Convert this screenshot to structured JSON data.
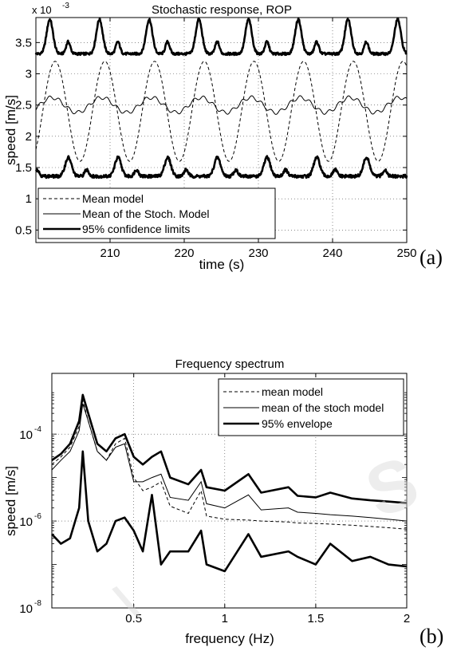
{
  "chart_data": [
    {
      "type": "line",
      "panel_label": "(a)",
      "title": "Stochastic response, ROP",
      "xlabel": "time (s)",
      "ylabel": "speed [m/s]",
      "y_exponent_label": "x 10",
      "y_exponent": "-3",
      "xlim": [
        200,
        250
      ],
      "ylim": [
        0.0003,
        0.0039
      ],
      "xticks": [
        210,
        220,
        230,
        240,
        250
      ],
      "yticks": [
        0.5,
        1,
        1.5,
        2,
        2.5,
        3,
        3.5
      ],
      "ytick_labels": [
        "0.5",
        "1",
        "1.5",
        "2",
        "2.5",
        "3",
        "3.5"
      ],
      "grid": true,
      "legend_position": "bottom-left",
      "sample_times": [
        200,
        202,
        204,
        206,
        208,
        210,
        212,
        214,
        216,
        218,
        220,
        222,
        224,
        226,
        228,
        230,
        232,
        234,
        236,
        238,
        240,
        242,
        244,
        246,
        248,
        250
      ],
      "series": [
        {
          "name": "Mean model",
          "style": "dashed",
          "period_s": 6.7,
          "mean": 0.0024,
          "amplitude": 0.0008,
          "values": [
            0.00178,
            0.00305,
            0.00251,
            0.00165,
            0.00237,
            0.00318,
            0.00178,
            0.00212,
            0.00316,
            0.00203,
            0.00185,
            0.00304,
            0.00251,
            0.00165,
            0.00236,
            0.00318,
            0.00178,
            0.00211,
            0.00316,
            0.00203,
            0.00186,
            0.00305,
            0.00252,
            0.00165,
            0.00236,
            0.00318
          ]
        },
        {
          "name": "Mean of the Stoch. Model",
          "style": "thin",
          "period_s": 6.7,
          "mean": 0.0025,
          "amplitude": 0.00012,
          "values": [
            0.00249,
            0.00258,
            0.00262,
            0.00247,
            0.00239,
            0.00251,
            0.00261,
            0.00254,
            0.0024,
            0.00245,
            0.00259,
            0.00258,
            0.00243,
            0.00241,
            0.00255,
            0.00262,
            0.00249,
            0.00239,
            0.00249,
            0.00261,
            0.00256,
            0.00241,
            0.00243,
            0.00258,
            0.0026,
            0.00247
          ]
        },
        {
          "name": "95% confidence limits",
          "style": "thick",
          "period_s": 6.7,
          "note": "upper and lower envelopes",
          "upper_values": [
            0.0034,
            0.00378,
            0.00342,
            0.0033,
            0.00372,
            0.00352,
            0.00328,
            0.0038,
            0.0034,
            0.00332,
            0.00375,
            0.0035,
            0.0033,
            0.00382,
            0.00342,
            0.0033,
            0.00372,
            0.00352,
            0.00328,
            0.0038,
            0.00341,
            0.00332,
            0.00376,
            0.0035,
            0.0033,
            0.00347
          ],
          "lower_values": [
            0.00143,
            0.00162,
            0.00135,
            0.00146,
            0.00165,
            0.0014,
            0.00142,
            0.00164,
            0.00136,
            0.00147,
            0.00163,
            0.00139,
            0.00143,
            0.00165,
            0.00136,
            0.00146,
            0.00164,
            0.0014,
            0.00142,
            0.00164,
            0.00137,
            0.00147,
            0.00163,
            0.00139,
            0.00143,
            0.00158
          ]
        }
      ]
    },
    {
      "type": "line",
      "panel_label": "(b)",
      "title": "Frequency spectrum",
      "xlabel": "frequency (Hz)",
      "ylabel": "speed [m/s]",
      "xlim": [
        0.05,
        2.0
      ],
      "ylim": [
        1e-08,
        0.0025
      ],
      "yscale": "log",
      "xticks": [
        0.5,
        1,
        1.5,
        2
      ],
      "xtick_labels": [
        "0.5",
        "1",
        "1.5",
        "2"
      ],
      "yticks": [
        1e-08,
        1e-06,
        0.0001
      ],
      "ytick_base": "10",
      "ytick_exponents": [
        "-8",
        "-6",
        "-4"
      ],
      "grid": true,
      "legend_position": "top-right",
      "x": [
        0.05,
        0.1,
        0.15,
        0.2,
        0.22,
        0.25,
        0.3,
        0.35,
        0.4,
        0.45,
        0.5,
        0.55,
        0.6,
        0.65,
        0.7,
        0.8,
        0.87,
        0.9,
        1.0,
        1.13,
        1.2,
        1.35,
        1.4,
        1.5,
        1.58,
        1.7,
        1.8,
        1.9,
        2.0
      ],
      "series": [
        {
          "name": "mean model",
          "style": "dashed",
          "values": [
            2e-05,
            3e-05,
            5e-05,
            0.00015,
            0.0006,
            0.0002,
            4e-05,
            2.5e-05,
            6e-05,
            8e-05,
            1e-05,
            5e-06,
            6e-06,
            8e-06,
            2.2e-06,
            1.5e-06,
            5e-06,
            1.3e-06,
            1.1e-06,
            1.05e-06,
            1e-06,
            9.5e-07,
            9e-07,
            8.8e-07,
            8.5e-07,
            8e-07,
            7.5e-07,
            7e-07,
            6.5e-07
          ]
        },
        {
          "name": "mean of the stoch model",
          "style": "thin",
          "values": [
            1.5e-05,
            2.5e-05,
            4e-05,
            0.00012,
            0.0005,
            0.0002,
            4e-05,
            2.5e-05,
            5e-05,
            6e-05,
            8e-06,
            8e-06,
            1e-05,
            1.2e-05,
            3.5e-06,
            3e-06,
            8e-06,
            2.5e-06,
            2e-06,
            4e-06,
            1.8e-06,
            2e-06,
            1.6e-06,
            1.5e-06,
            1.4e-06,
            1.3e-06,
            1.2e-06,
            1.1e-06,
            1e-06
          ]
        },
        {
          "name": "95% envelope",
          "style": "thick",
          "upper_values": [
            2.5e-05,
            3.5e-05,
            6e-05,
            0.0002,
            0.0008,
            0.0003,
            6e-05,
            4e-05,
            8e-05,
            0.0001,
            3e-05,
            2e-05,
            3e-05,
            4e-05,
            1e-05,
            7e-06,
            1.5e-05,
            6e-06,
            5e-06,
            1.2e-05,
            4.5e-06,
            6e-06,
            3.8e-06,
            3.5e-06,
            4.5e-06,
            3.3e-06,
            3e-06,
            2.8e-06,
            2.6e-06
          ],
          "lower_values": [
            5e-07,
            3e-07,
            4e-07,
            2e-06,
            4e-05,
            1e-06,
            2e-07,
            3e-07,
            1e-06,
            1.2e-06,
            6e-07,
            2e-07,
            4e-06,
            1e-07,
            2e-07,
            2e-07,
            6e-07,
            1e-07,
            7e-08,
            5e-07,
            1.5e-07,
            2e-07,
            1.5e-07,
            1e-07,
            3e-07,
            1.2e-07,
            1.5e-07,
            1e-07,
            9e-08
          ]
        }
      ]
    }
  ]
}
